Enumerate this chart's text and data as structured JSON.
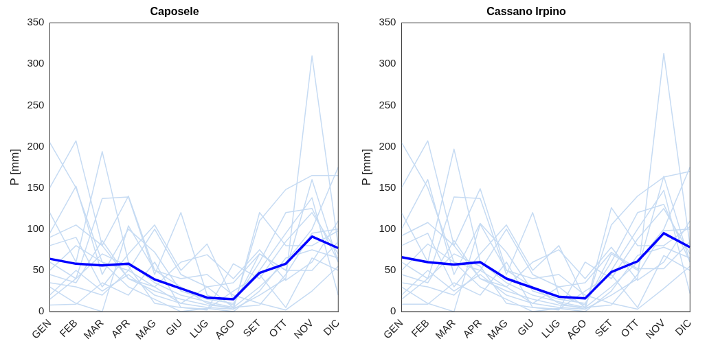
{
  "chart_data": [
    {
      "type": "line",
      "title": "Caposele",
      "ylabel": "P [mm]",
      "categories": [
        "GEN",
        "FEB",
        "MAR",
        "APR",
        "MAG",
        "GIU",
        "LUG",
        "AGO",
        "SET",
        "OTT",
        "NOV",
        "DIC"
      ],
      "ylim": [
        0,
        350
      ],
      "yticks": [
        0,
        50,
        100,
        150,
        200,
        250,
        300,
        350
      ],
      "grid": false,
      "legend": false,
      "marker": "none",
      "series": [
        {
          "color": "#c6dbf3",
          "values": [
            205,
            150,
            60,
            50,
            30,
            10,
            5,
            3,
            20,
            40,
            310,
            80
          ]
        },
        {
          "color": "#c6dbf3",
          "values": [
            150,
            207,
            80,
            40,
            25,
            15,
            8,
            5,
            30,
            60,
            100,
            175
          ]
        },
        {
          "color": "#c6dbf3",
          "values": [
            95,
            152,
            45,
            100,
            72,
            25,
            15,
            10,
            60,
            120,
            125,
            60
          ]
        },
        {
          "color": "#c6dbf3",
          "values": [
            120,
            60,
            194,
            60,
            35,
            20,
            12,
            5,
            110,
            148,
            165,
            165
          ]
        },
        {
          "color": "#c6dbf3",
          "values": [
            90,
            105,
            80,
            140,
            50,
            30,
            10,
            3,
            120,
            80,
            80,
            98
          ]
        },
        {
          "color": "#c6dbf3",
          "values": [
            60,
            40,
            137,
            139,
            45,
            120,
            20,
            8,
            70,
            50,
            160,
            60
          ]
        },
        {
          "color": "#c6dbf3",
          "values": [
            80,
            90,
            30,
            70,
            105,
            50,
            82,
            15,
            50,
            95,
            138,
            20
          ]
        },
        {
          "color": "#c6dbf3",
          "values": [
            45,
            35,
            86,
            40,
            30,
            60,
            69,
            40,
            75,
            38,
            60,
            110
          ]
        },
        {
          "color": "#c6dbf3",
          "values": [
            30,
            10,
            0,
            104,
            50,
            40,
            45,
            20,
            10,
            2,
            25,
            55
          ]
        },
        {
          "color": "#c6dbf3",
          "values": [
            8,
            9,
            35,
            20,
            60,
            5,
            2,
            58,
            40,
            85,
            120,
            70
          ]
        },
        {
          "color": "#c6dbf3",
          "values": [
            20,
            50,
            25,
            45,
            20,
            10,
            30,
            35,
            70,
            50,
            50,
            85
          ]
        },
        {
          "color": "#c6dbf3",
          "values": [
            50,
            80,
            60,
            30,
            15,
            0,
            4,
            0,
            25,
            65,
            75,
            65
          ]
        },
        {
          "color": "#c6dbf3",
          "values": [
            35,
            30,
            20,
            50,
            100,
            45,
            30,
            5,
            8,
            45,
            95,
            100
          ]
        },
        {
          "color": "#c6dbf3",
          "values": [
            15,
            40,
            70,
            55,
            10,
            5,
            3,
            25,
            45,
            5,
            65,
            50
          ]
        },
        {
          "color": "#0000ff",
          "values": [
            64,
            58,
            56,
            58,
            39,
            28,
            17,
            15,
            47,
            58,
            91,
            77
          ]
        }
      ]
    },
    {
      "type": "line",
      "title": "Cassano Irpino",
      "ylabel": "P [mm]",
      "categories": [
        "GEN",
        "FEB",
        "MAR",
        "APR",
        "MAG",
        "GIU",
        "LUG",
        "AGO",
        "SET",
        "OTT",
        "NOV",
        "DIC"
      ],
      "ylim": [
        0,
        350
      ],
      "yticks": [
        0,
        50,
        100,
        150,
        200,
        250,
        300,
        350
      ],
      "grid": false,
      "legend": false,
      "marker": "none",
      "series": [
        {
          "color": "#c6dbf3",
          "values": [
            205,
            150,
            60,
            50,
            30,
            10,
            5,
            3,
            20,
            40,
            313,
            80
          ]
        },
        {
          "color": "#c6dbf3",
          "values": [
            150,
            207,
            80,
            40,
            25,
            15,
            8,
            5,
            30,
            60,
            100,
            175
          ]
        },
        {
          "color": "#c6dbf3",
          "values": [
            100,
            160,
            45,
            107,
            72,
            25,
            15,
            10,
            60,
            120,
            130,
            60
          ]
        },
        {
          "color": "#c6dbf3",
          "values": [
            120,
            60,
            197,
            60,
            35,
            20,
            12,
            5,
            105,
            140,
            163,
            170
          ]
        },
        {
          "color": "#c6dbf3",
          "values": [
            92,
            108,
            80,
            149,
            50,
            30,
            10,
            3,
            126,
            80,
            80,
            103
          ]
        },
        {
          "color": "#c6dbf3",
          "values": [
            60,
            40,
            139,
            137,
            45,
            120,
            20,
            8,
            70,
            50,
            164,
            60
          ]
        },
        {
          "color": "#c6dbf3",
          "values": [
            80,
            95,
            30,
            70,
            105,
            50,
            80,
            15,
            50,
            100,
            147,
            22
          ]
        },
        {
          "color": "#c6dbf3",
          "values": [
            45,
            35,
            86,
            40,
            30,
            60,
            75,
            40,
            78,
            38,
            60,
            110
          ]
        },
        {
          "color": "#c6dbf3",
          "values": [
            30,
            10,
            0,
            106,
            50,
            40,
            45,
            20,
            10,
            3,
            28,
            55
          ]
        },
        {
          "color": "#c6dbf3",
          "values": [
            9,
            9,
            35,
            20,
            60,
            5,
            2,
            60,
            40,
            88,
            125,
            70
          ]
        },
        {
          "color": "#c6dbf3",
          "values": [
            20,
            50,
            25,
            45,
            20,
            10,
            30,
            35,
            72,
            52,
            52,
            85
          ]
        },
        {
          "color": "#c6dbf3",
          "values": [
            50,
            82,
            60,
            30,
            15,
            0,
            4,
            0,
            25,
            68,
            78,
            65
          ]
        },
        {
          "color": "#c6dbf3",
          "values": [
            35,
            30,
            20,
            50,
            100,
            45,
            30,
            5,
            8,
            45,
            98,
            100
          ]
        },
        {
          "color": "#c6dbf3",
          "values": [
            15,
            40,
            70,
            55,
            10,
            5,
            3,
            25,
            45,
            5,
            68,
            50
          ]
        },
        {
          "color": "#0000ff",
          "values": [
            66,
            60,
            57,
            60,
            40,
            29,
            18,
            16,
            48,
            61,
            95,
            78
          ]
        }
      ]
    }
  ]
}
